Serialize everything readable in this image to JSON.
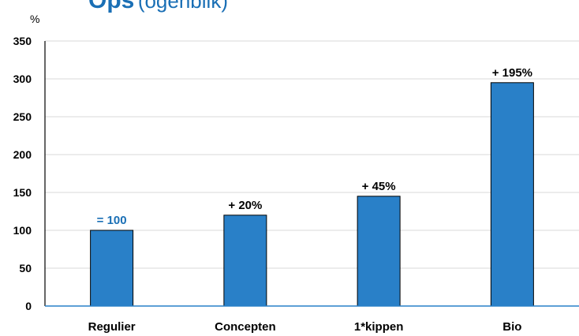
{
  "chart_data": {
    "type": "bar",
    "title": "Ops",
    "subtitle": "(ogenblik)",
    "ylabel": "%",
    "ylim": [
      0,
      350
    ],
    "yticks": [
      0,
      50,
      100,
      150,
      200,
      250,
      300,
      350
    ],
    "grid": true,
    "categories": [
      "Regulier",
      "Concepten",
      "1*kippen",
      "Bio"
    ],
    "values": [
      100,
      120,
      145,
      295
    ],
    "data_labels": [
      "= 100",
      "+ 20%",
      "+ 45%",
      "+ 195%"
    ],
    "bar_color": "#2980c8",
    "label_colors": [
      "#1a6fb5",
      "#000000",
      "#000000",
      "#000000"
    ]
  }
}
